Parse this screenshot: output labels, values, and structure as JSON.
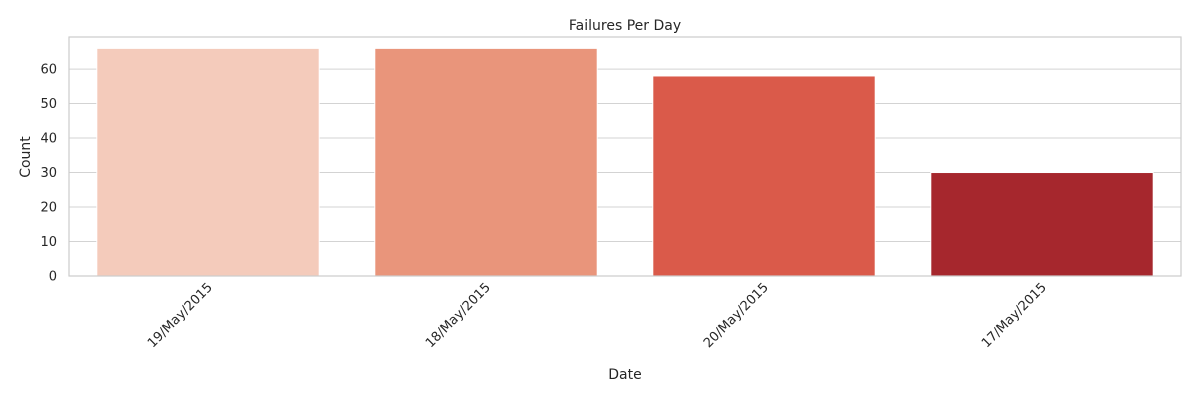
{
  "chart_data": {
    "type": "bar",
    "title": "Failures Per Day",
    "xlabel": "Date",
    "ylabel": "Count",
    "categories": [
      "19/May/2015",
      "18/May/2015",
      "20/May/2015",
      "17/May/2015"
    ],
    "values": [
      66,
      66,
      58,
      30
    ],
    "colors": [
      "#f4cbbb",
      "#e9957b",
      "#da5a4a",
      "#a6272d"
    ],
    "ylim": [
      0,
      69.3
    ],
    "yticks": [
      0,
      10,
      20,
      30,
      40,
      50,
      60
    ],
    "grid": true,
    "grid_color": "#d3d3d3",
    "frame_color": "#cccccc"
  }
}
